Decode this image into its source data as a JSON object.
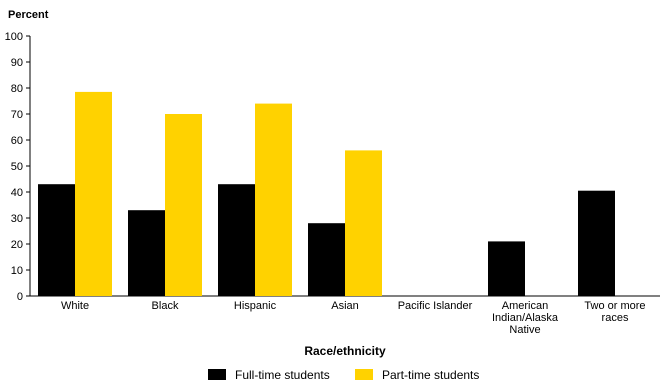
{
  "chart_data": {
    "type": "bar",
    "ylabel": "Percent",
    "xlabel": "Race/ethnicity",
    "ylim": [
      0,
      100
    ],
    "yticks": [
      0,
      10,
      20,
      30,
      40,
      50,
      60,
      70,
      80,
      90,
      100
    ],
    "grid": false,
    "legend_position": "bottom",
    "categories": [
      [
        "White"
      ],
      [
        "Black"
      ],
      [
        "Hispanic"
      ],
      [
        "Asian"
      ],
      [
        "Pacific Islander"
      ],
      [
        "American",
        "Indian/Alaska",
        "Native"
      ],
      [
        "Two or more",
        "races"
      ]
    ],
    "series": [
      {
        "name": "Full-time students",
        "color": "#000000",
        "values": [
          43,
          33,
          43,
          28,
          null,
          21,
          40.5
        ]
      },
      {
        "name": "Part-time students",
        "color": "#ffd200",
        "values": [
          78.5,
          70,
          74,
          56,
          null,
          null,
          null
        ]
      }
    ]
  }
}
